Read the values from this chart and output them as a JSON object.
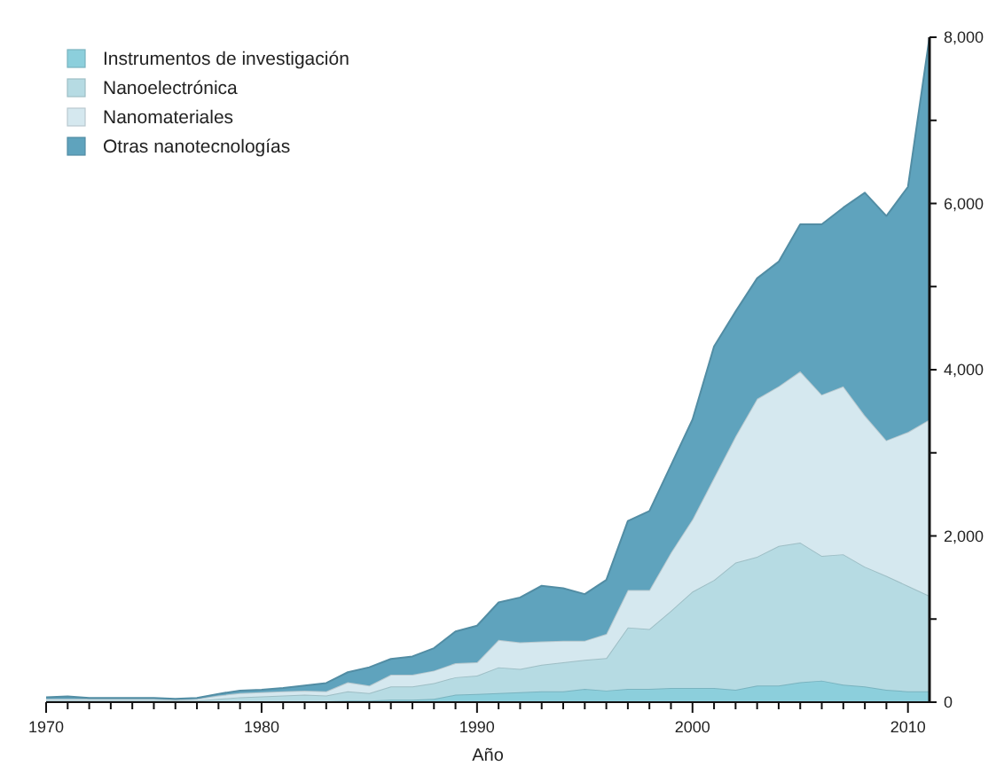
{
  "chart_data": {
    "type": "area",
    "stacked": true,
    "xlabel": "Año",
    "legend": "top left",
    "x": [
      1970,
      1971,
      1972,
      1973,
      1974,
      1975,
      1976,
      1977,
      1978,
      1979,
      1980,
      1981,
      1982,
      1983,
      1984,
      1985,
      1986,
      1987,
      1988,
      1989,
      1990,
      1991,
      1992,
      1993,
      1994,
      1995,
      1996,
      1997,
      1998,
      1999,
      2000,
      2001,
      2002,
      2003,
      2004,
      2005,
      2006,
      2007,
      2008,
      2009,
      2010,
      2011
    ],
    "xlim": [
      1970,
      2011
    ],
    "xticks": [
      1970,
      {
        "value": 1971,
        "label": null
      },
      {
        "value": 1972,
        "label": null
      },
      {
        "value": 1973,
        "label": null
      },
      {
        "value": 1974,
        "label": null
      },
      {
        "value": 1975,
        "label": null
      },
      {
        "value": 1976,
        "label": null
      },
      {
        "value": 1977,
        "label": null
      },
      {
        "value": 1978,
        "label": null
      },
      {
        "value": 1979,
        "label": null
      },
      1980,
      {
        "value": 1981,
        "label": null
      },
      {
        "value": 1982,
        "label": null
      },
      {
        "value": 1983,
        "label": null
      },
      {
        "value": 1984,
        "label": null
      },
      {
        "value": 1985,
        "label": null
      },
      {
        "value": 1986,
        "label": null
      },
      {
        "value": 1987,
        "label": null
      },
      {
        "value": 1988,
        "label": null
      },
      {
        "value": 1989,
        "label": null
      },
      1990,
      {
        "value": 1991,
        "label": null
      },
      {
        "value": 1992,
        "label": null
      },
      {
        "value": 1993,
        "label": null
      },
      {
        "value": 1994,
        "label": null
      },
      {
        "value": 1995,
        "label": null
      },
      {
        "value": 1996,
        "label": null
      },
      {
        "value": 1997,
        "label": null
      },
      {
        "value": 1998,
        "label": null
      },
      {
        "value": 1999,
        "label": null
      },
      2000,
      {
        "value": 2001,
        "label": null
      },
      {
        "value": 2002,
        "label": null
      },
      {
        "value": 2003,
        "label": null
      },
      {
        "value": 2004,
        "label": null
      },
      {
        "value": 2005,
        "label": null
      },
      {
        "value": 2006,
        "label": null
      },
      {
        "value": 2007,
        "label": null
      },
      {
        "value": 2008,
        "label": null
      },
      {
        "value": 2009,
        "label": null
      },
      2010
    ],
    "ylim": [
      0,
      8000
    ],
    "yticks": [
      0,
      {
        "value": 1000,
        "label": null
      },
      {
        "value": 2000,
        "label": "2,000"
      },
      {
        "value": 3000,
        "label": null
      },
      {
        "value": 4000,
        "label": "4,000"
      },
      {
        "value": 5000,
        "label": null
      },
      {
        "value": 6000,
        "label": "6,000"
      },
      {
        "value": 7000,
        "label": null
      },
      {
        "value": 8000,
        "label": "8,000"
      }
    ],
    "series": [
      {
        "name": "Instrumentos de investigación",
        "color": "#8ccfdc",
        "values": [
          10,
          10,
          10,
          10,
          10,
          10,
          10,
          10,
          10,
          10,
          10,
          10,
          10,
          10,
          20,
          20,
          30,
          30,
          40,
          90,
          100,
          110,
          120,
          130,
          130,
          160,
          140,
          160,
          160,
          170,
          170,
          170,
          150,
          200,
          200,
          240,
          260,
          210,
          190,
          150,
          130,
          130
        ]
      },
      {
        "name": "Nanoelectrónica",
        "color": "#b6dbe3",
        "values": [
          10,
          10,
          10,
          10,
          10,
          10,
          10,
          10,
          30,
          50,
          60,
          70,
          80,
          70,
          110,
          90,
          160,
          160,
          190,
          210,
          220,
          310,
          280,
          320,
          350,
          350,
          390,
          740,
          720,
          930,
          1160,
          1300,
          1530,
          1550,
          1680,
          1680,
          1500,
          1570,
          1440,
          1370,
          1270,
          1150
        ]
      },
      {
        "name": "Nanomateriales",
        "color": "#d5e8ef",
        "values": [
          20,
          20,
          20,
          20,
          20,
          20,
          10,
          20,
          40,
          50,
          50,
          50,
          50,
          50,
          110,
          90,
          140,
          140,
          150,
          170,
          160,
          330,
          320,
          280,
          260,
          230,
          290,
          450,
          470,
          700,
          870,
          1230,
          1520,
          1900,
          1920,
          2060,
          1940,
          2020,
          1820,
          1630,
          1850,
          2120
        ]
      },
      {
        "name": "Otras nanotecnologías",
        "color": "#5fa3bd",
        "values": [
          20,
          30,
          10,
          10,
          10,
          10,
          10,
          10,
          20,
          30,
          30,
          40,
          60,
          100,
          120,
          220,
          190,
          220,
          270,
          380,
          440,
          450,
          540,
          670,
          630,
          560,
          650,
          830,
          950,
          1050,
          1200,
          1580,
          1500,
          1450,
          1500,
          1770,
          2050,
          2150,
          2680,
          2700,
          2950,
          4600
        ]
      }
    ]
  }
}
